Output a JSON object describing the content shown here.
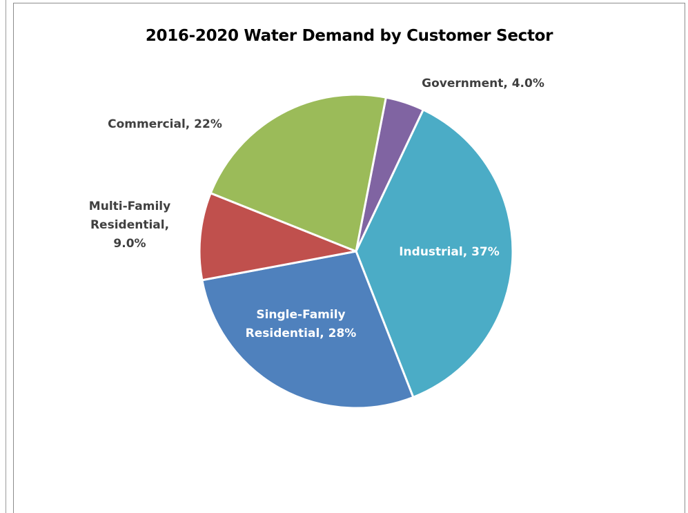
{
  "chart_data": {
    "type": "pie",
    "title": "2016-2020 Water Demand by Customer Sector",
    "slices": [
      {
        "name": "Government",
        "label": [
          "Government, 4.0%"
        ],
        "value": 4.0,
        "color": "#8064A2",
        "label_color": "#404040"
      },
      {
        "name": "Industrial",
        "label": [
          "Industrial, 37%"
        ],
        "value": 37,
        "color": "#4BACC6",
        "label_color": "#FFFFFF"
      },
      {
        "name": "Single-Family Residential",
        "label": [
          "Single-Family",
          "Residential, 28%"
        ],
        "value": 28,
        "color": "#4F81BD",
        "label_color": "#FFFFFF"
      },
      {
        "name": "Multi-Family Residential",
        "label": [
          "Multi-Family",
          "Residential,",
          "9.0%"
        ],
        "value": 9.0,
        "color": "#C0504D",
        "label_color": "#404040"
      },
      {
        "name": "Commercial",
        "label": [
          "Commercial, 22%"
        ],
        "value": 22,
        "color": "#9BBB59",
        "label_color": "#404040"
      }
    ],
    "legend": "none"
  }
}
